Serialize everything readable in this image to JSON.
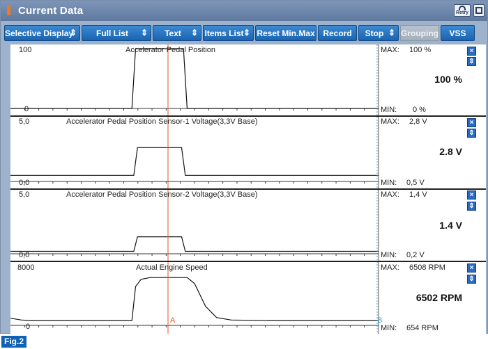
{
  "window": {
    "title": "Current Data",
    "retry_label": "Retry"
  },
  "toolbar": {
    "buttons": [
      {
        "label": "Selective Display",
        "dropdown": true
      },
      {
        "label": "Full List",
        "dropdown": true
      },
      {
        "label": "Text",
        "dropdown": true
      },
      {
        "label": "Items List",
        "dropdown": true
      },
      {
        "label": "Reset Min.Max",
        "dropdown": false
      },
      {
        "label": "Record",
        "dropdown": false
      },
      {
        "label": "Stop",
        "dropdown": true
      },
      {
        "label": "Grouping",
        "dropdown": false,
        "disabled": true
      },
      {
        "label": "VSS",
        "dropdown": false
      }
    ]
  },
  "cursors": {
    "a_label": "A",
    "b_label": "B"
  },
  "graphs": [
    {
      "title": "Accelerator Pedal Position",
      "y_max_label": "100",
      "y_min_label": "0",
      "max_label": "MAX:",
      "max_value": "100 %",
      "min_label": "MIN:",
      "min_value": "0 %",
      "current": "100 %",
      "signal": [
        [
          0,
          0
        ],
        [
          0.33,
          0
        ],
        [
          0.34,
          1
        ],
        [
          0.47,
          1
        ],
        [
          0.48,
          0
        ],
        [
          1,
          0
        ]
      ]
    },
    {
      "title": "Accelerator Pedal Position Sensor-1 Voltage(3,3V Base)",
      "y_max_label": "5,0",
      "y_min_label": "0,0",
      "max_label": "MAX:",
      "max_value": "2,8 V",
      "min_label": "MIN:",
      "min_value": "0,5 V",
      "current": "2.8 V",
      "signal": [
        [
          0,
          0.1
        ],
        [
          0.335,
          0.1
        ],
        [
          0.345,
          0.56
        ],
        [
          0.465,
          0.56
        ],
        [
          0.475,
          0.1
        ],
        [
          1,
          0.1
        ]
      ]
    },
    {
      "title": "Accelerator Pedal Position Sensor-2 Voltage(3,3V Base)",
      "y_max_label": "5,0",
      "y_min_label": "0,0",
      "max_label": "MAX:",
      "max_value": "1,4 V",
      "min_label": "MIN:",
      "min_value": "0,2 V",
      "current": "1.4 V",
      "signal": [
        [
          0,
          0.04
        ],
        [
          0.335,
          0.04
        ],
        [
          0.345,
          0.28
        ],
        [
          0.465,
          0.28
        ],
        [
          0.475,
          0.04
        ],
        [
          1,
          0.04
        ]
      ]
    },
    {
      "title": "Actual Engine Speed",
      "y_max_label": "8000",
      "y_min_label": "0",
      "max_label": "MAX:",
      "max_value": "6508 RPM",
      "min_label": "MIN:",
      "min_value": "654 RPM",
      "current": "6502 RPM",
      "signal": [
        [
          0,
          0.12
        ],
        [
          0.03,
          0.09
        ],
        [
          0.06,
          0.08
        ],
        [
          0.33,
          0.08
        ],
        [
          0.34,
          0.65
        ],
        [
          0.355,
          0.77
        ],
        [
          0.38,
          0.8
        ],
        [
          0.48,
          0.8
        ],
        [
          0.5,
          0.7
        ],
        [
          0.53,
          0.32
        ],
        [
          0.56,
          0.13
        ],
        [
          0.6,
          0.09
        ],
        [
          0.7,
          0.08
        ],
        [
          1,
          0.08
        ]
      ]
    }
  ],
  "figure_label": "Fig.2"
}
